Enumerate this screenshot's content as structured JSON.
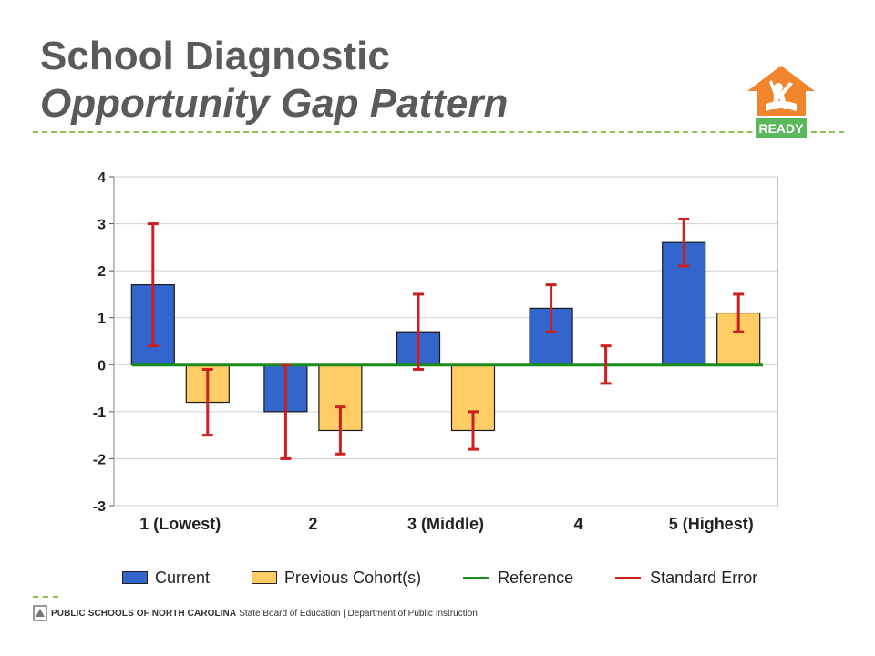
{
  "slide": {
    "title": "School Diagnostic",
    "subtitle": "Opportunity Gap Pattern",
    "logo_text": "READY",
    "footer_bold": "PUBLIC SCHOOLS OF NORTH CAROLINA",
    "footer_rest": "State Board of Education | Department of Public Instruction"
  },
  "colors": {
    "current": "#3366cc",
    "previous": "#ffcc66",
    "reference": "#1a8c1a",
    "error": "#cc1f1f",
    "title": "#5a5a5a",
    "accent_rule": "#8cc152",
    "logo": "#f0852d",
    "logo_banner": "#5cb85c"
  },
  "chart_data": {
    "type": "bar",
    "categories": [
      "1 (Lowest)",
      "2",
      "3 (Middle)",
      "4",
      "5 (Highest)"
    ],
    "series": [
      {
        "name": "Current",
        "values": [
          1.7,
          -1.0,
          0.7,
          1.2,
          2.6
        ],
        "error_low": [
          0.4,
          -2.0,
          -0.1,
          0.7,
          2.1
        ],
        "error_high": [
          3.0,
          0.0,
          1.5,
          1.7,
          3.1
        ]
      },
      {
        "name": "Previous Cohort(s)",
        "values": [
          -0.8,
          -1.4,
          -1.4,
          null,
          1.1
        ],
        "error_low": [
          -1.5,
          -1.9,
          -1.8,
          -0.4,
          0.7
        ],
        "error_high": [
          -0.1,
          -0.9,
          -1.0,
          0.4,
          1.5
        ]
      }
    ],
    "reference_value": 0,
    "ylim": [
      -3,
      4
    ],
    "yticks": [
      "-3",
      "-2",
      "-1",
      "0",
      "1",
      "2",
      "3",
      "4"
    ],
    "grid": true,
    "legend": {
      "position": "bottom",
      "items": [
        "Current",
        "Previous Cohort(s)",
        "Reference",
        "Standard Error"
      ]
    }
  }
}
